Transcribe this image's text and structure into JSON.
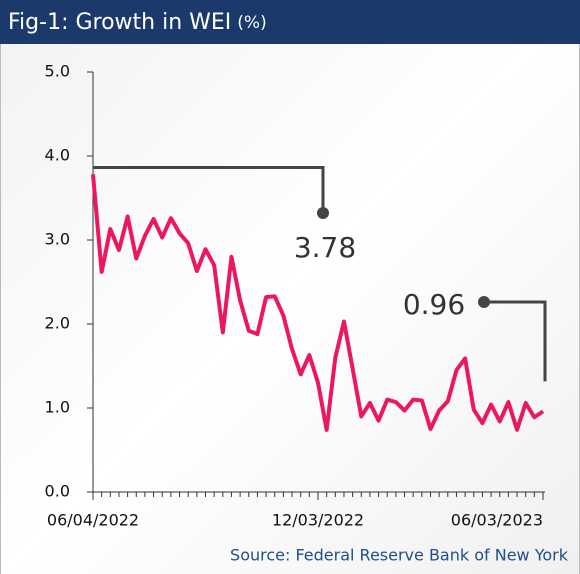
{
  "chart_data": {
    "type": "line",
    "title": "Fig-1: Growth in WEI",
    "unit": "(%)",
    "source": "Source: Federal Reserve Bank of New York",
    "categories": [
      "06/04/2022",
      null,
      null,
      null,
      null,
      null,
      null,
      null,
      null,
      null,
      null,
      null,
      null,
      null,
      null,
      null,
      null,
      null,
      null,
      null,
      null,
      null,
      null,
      null,
      null,
      null,
      "12/03/2022",
      null,
      null,
      null,
      null,
      null,
      null,
      null,
      null,
      null,
      null,
      null,
      null,
      null,
      null,
      null,
      null,
      null,
      null,
      null,
      null,
      null,
      null,
      null,
      null,
      null,
      "06/03/2023"
    ],
    "series": [
      {
        "name": "WEI",
        "color": "#ec1763",
        "values": [
          3.78,
          2.62,
          3.13,
          2.88,
          3.28,
          2.78,
          3.05,
          3.25,
          3.03,
          3.26,
          3.08,
          2.96,
          2.63,
          2.89,
          2.7,
          1.9,
          2.8,
          2.28,
          1.92,
          1.88,
          2.32,
          2.33,
          2.1,
          1.7,
          1.4,
          1.63,
          1.3,
          0.74,
          1.6,
          2.03,
          1.47,
          0.9,
          1.06,
          0.85,
          1.1,
          1.07,
          0.97,
          1.1,
          1.09,
          0.75,
          0.97,
          1.08,
          1.45,
          1.59,
          0.98,
          0.82,
          1.04,
          0.84,
          1.07,
          0.74,
          1.06,
          0.89,
          0.96
        ]
      }
    ],
    "ylim": [
      0,
      5
    ],
    "yticks": [
      {
        "value": 0,
        "label": "0.0"
      },
      {
        "value": 1,
        "label": "1.0"
      },
      {
        "value": 2,
        "label": "2.0"
      },
      {
        "value": 3,
        "label": "3.0"
      },
      {
        "value": 4,
        "label": "4.0"
      },
      {
        "value": 5,
        "label": "5.0"
      }
    ],
    "annotations": [
      "3.78",
      "0.96"
    ],
    "grid": false
  }
}
